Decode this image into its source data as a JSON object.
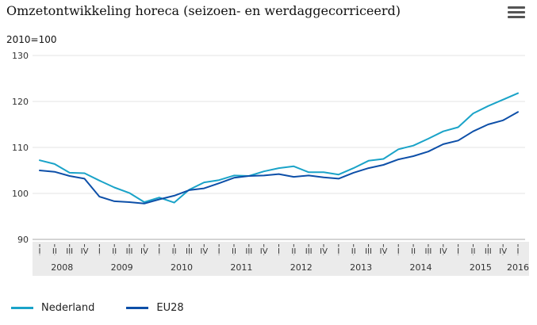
{
  "header": {
    "title": "Omzetontwikkeling horeca (seizoen- en werdaggecorriceerd)",
    "unit_label": "2010=100",
    "menu_icon": "hamburger-menu-icon"
  },
  "chart_data": {
    "type": "line",
    "title": "Omzetontwikkeling horeca (seizoen- en werdaggecorriceerd)",
    "ylabel": "2010=100",
    "ylim": [
      90,
      130
    ],
    "yticks": [
      90,
      100,
      110,
      120,
      130
    ],
    "grid": true,
    "legend_position": "bottom-left",
    "quarters": [
      "I",
      "II",
      "III",
      "IV",
      "I",
      "II",
      "III",
      "IV",
      "I",
      "II",
      "III",
      "IV",
      "I",
      "II",
      "III",
      "IV",
      "I",
      "II",
      "III",
      "IV",
      "I",
      "II",
      "III",
      "IV",
      "I",
      "II",
      "III",
      "IV",
      "I",
      "II",
      "III",
      "IV",
      "I"
    ],
    "years": [
      {
        "label": "2008",
        "start": 0
      },
      {
        "label": "2009",
        "start": 4
      },
      {
        "label": "2010",
        "start": 8
      },
      {
        "label": "2011",
        "start": 12
      },
      {
        "label": "2012",
        "start": 16
      },
      {
        "label": "2013",
        "start": 20
      },
      {
        "label": "2014",
        "start": 24
      },
      {
        "label": "2015",
        "start": 28
      },
      {
        "label": "2016",
        "start": 32
      }
    ],
    "series": [
      {
        "name": "Nederland",
        "color": "#1aa3c8",
        "values": [
          107.2,
          106.4,
          104.5,
          104.4,
          102.8,
          101.3,
          100.1,
          98.1,
          99.1,
          98.0,
          100.8,
          102.4,
          102.9,
          103.9,
          103.8,
          104.8,
          105.5,
          105.9,
          104.6,
          104.6,
          104.1,
          105.5,
          107.1,
          107.5,
          109.6,
          110.4,
          111.9,
          113.5,
          114.4,
          117.4,
          119.0,
          120.4,
          121.8
        ]
      },
      {
        "name": "EU28",
        "color": "#0d4fa8",
        "values": [
          105.0,
          104.7,
          103.8,
          103.2,
          99.3,
          98.3,
          98.1,
          97.8,
          98.7,
          99.5,
          100.7,
          101.1,
          102.2,
          103.4,
          103.8,
          103.9,
          104.2,
          103.6,
          103.9,
          103.5,
          103.2,
          104.5,
          105.5,
          106.2,
          107.4,
          108.1,
          109.1,
          110.7,
          111.5,
          113.5,
          115.0,
          115.9,
          117.7
        ]
      }
    ]
  }
}
